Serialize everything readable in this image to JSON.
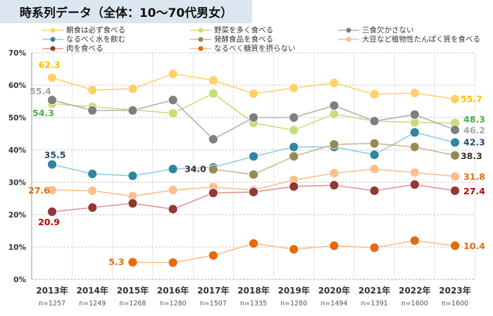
{
  "title": "時系列データ（全体：10〜70代男女）",
  "chart_data": {
    "type": "line",
    "ylabel": "",
    "xlabel": "",
    "ylim": [
      0,
      70
    ],
    "yticks": [
      "0%",
      "10%",
      "20%",
      "30%",
      "40%",
      "50%",
      "60%",
      "70%"
    ],
    "grid": "horizontal dashed, vertical solid",
    "legend_placement": "top",
    "categories": [
      "2013年",
      "2014年",
      "2015年",
      "2016年",
      "2017年",
      "2018年",
      "2019年",
      "2020年",
      "2021年",
      "2022年",
      "2023年"
    ],
    "sample_sizes": [
      "n=1257",
      "n=1249",
      "n=1268",
      "n=1280",
      "n=1507",
      "n=1335",
      "n=1280",
      "n=1494",
      "n=1391",
      "n=1600",
      "n=1600"
    ],
    "series": [
      {
        "name": "朝食は必ず食べる",
        "color": "#ffd166",
        "label_color": "#ffc000",
        "values": [
          62.3,
          58.5,
          58.9,
          63.5,
          61.5,
          57.4,
          59.1,
          60.7,
          57.2,
          57.6,
          55.7
        ],
        "labels": {
          "0": "62.3",
          "10": "55.7"
        }
      },
      {
        "name": "野菜を多く食べる",
        "color": "#c5e07a",
        "label_color": "#4caf50",
        "values": [
          54.3,
          53.3,
          52.4,
          51.3,
          57.4,
          48.3,
          46.1,
          51.1,
          48.9,
          48.5,
          48.3
        ],
        "labels": {
          "0": "54.3",
          "10": "48.3"
        }
      },
      {
        "name": "三食欠かさない",
        "color": "#7f7f7f",
        "line_color": "#b0b0b0",
        "label_color": "#a6a6a6",
        "values": [
          55.4,
          52.2,
          52.2,
          55.4,
          43.3,
          50.0,
          50.0,
          53.7,
          48.9,
          50.9,
          46.2
        ],
        "labels": {
          "0": "55.4",
          "10": "46.2"
        }
      },
      {
        "name": "なるべく水を飲む",
        "color": "#2e86a0",
        "line_color": "#92cde0",
        "label_color": "#1f4e6b",
        "values": [
          35.5,
          32.6,
          32.0,
          34.1,
          34.6,
          38.0,
          40.9,
          40.9,
          38.5,
          45.4,
          42.3
        ],
        "labels": {
          "0": "35.5",
          "10": "42.3"
        }
      },
      {
        "name": "発酵食品を食べる",
        "color": "#968a55",
        "line_color": "#c4b994",
        "label_color": "#3b3224",
        "values": [
          null,
          null,
          null,
          null,
          34.0,
          32.4,
          38.0,
          41.7,
          42.0,
          40.9,
          38.3
        ],
        "labels": {
          "4": "34.0",
          "10": "38.3"
        }
      },
      {
        "name": "大豆など植物性たんぱく質を食べる",
        "color": "#fbbf8e",
        "label_color": "#e46c0a",
        "values": [
          27.6,
          27.4,
          25.7,
          27.6,
          28.5,
          27.6,
          30.7,
          32.8,
          34.1,
          33.0,
          31.8
        ],
        "labels": {
          "0": "27.6",
          "10": "31.8"
        }
      },
      {
        "name": "肉を食べる",
        "color": "#953735",
        "line_color": "#d99795",
        "label_color": "#c00000",
        "values": [
          20.9,
          22.2,
          23.5,
          21.7,
          26.7,
          27.0,
          28.7,
          29.1,
          27.4,
          29.3,
          27.4
        ],
        "labels": {
          "0": "20.9",
          "10": "27.4"
        }
      },
      {
        "name": "なるべく糖質を摂らない",
        "color": "#e8680a",
        "line_color": "#fbbf8e",
        "label_color": "#e46c0a",
        "values": [
          null,
          null,
          5.3,
          5.2,
          7.4,
          11.1,
          9.3,
          10.4,
          9.8,
          12.0,
          10.4
        ],
        "labels": {
          "2": "5.3",
          "10": "10.4"
        }
      }
    ]
  }
}
